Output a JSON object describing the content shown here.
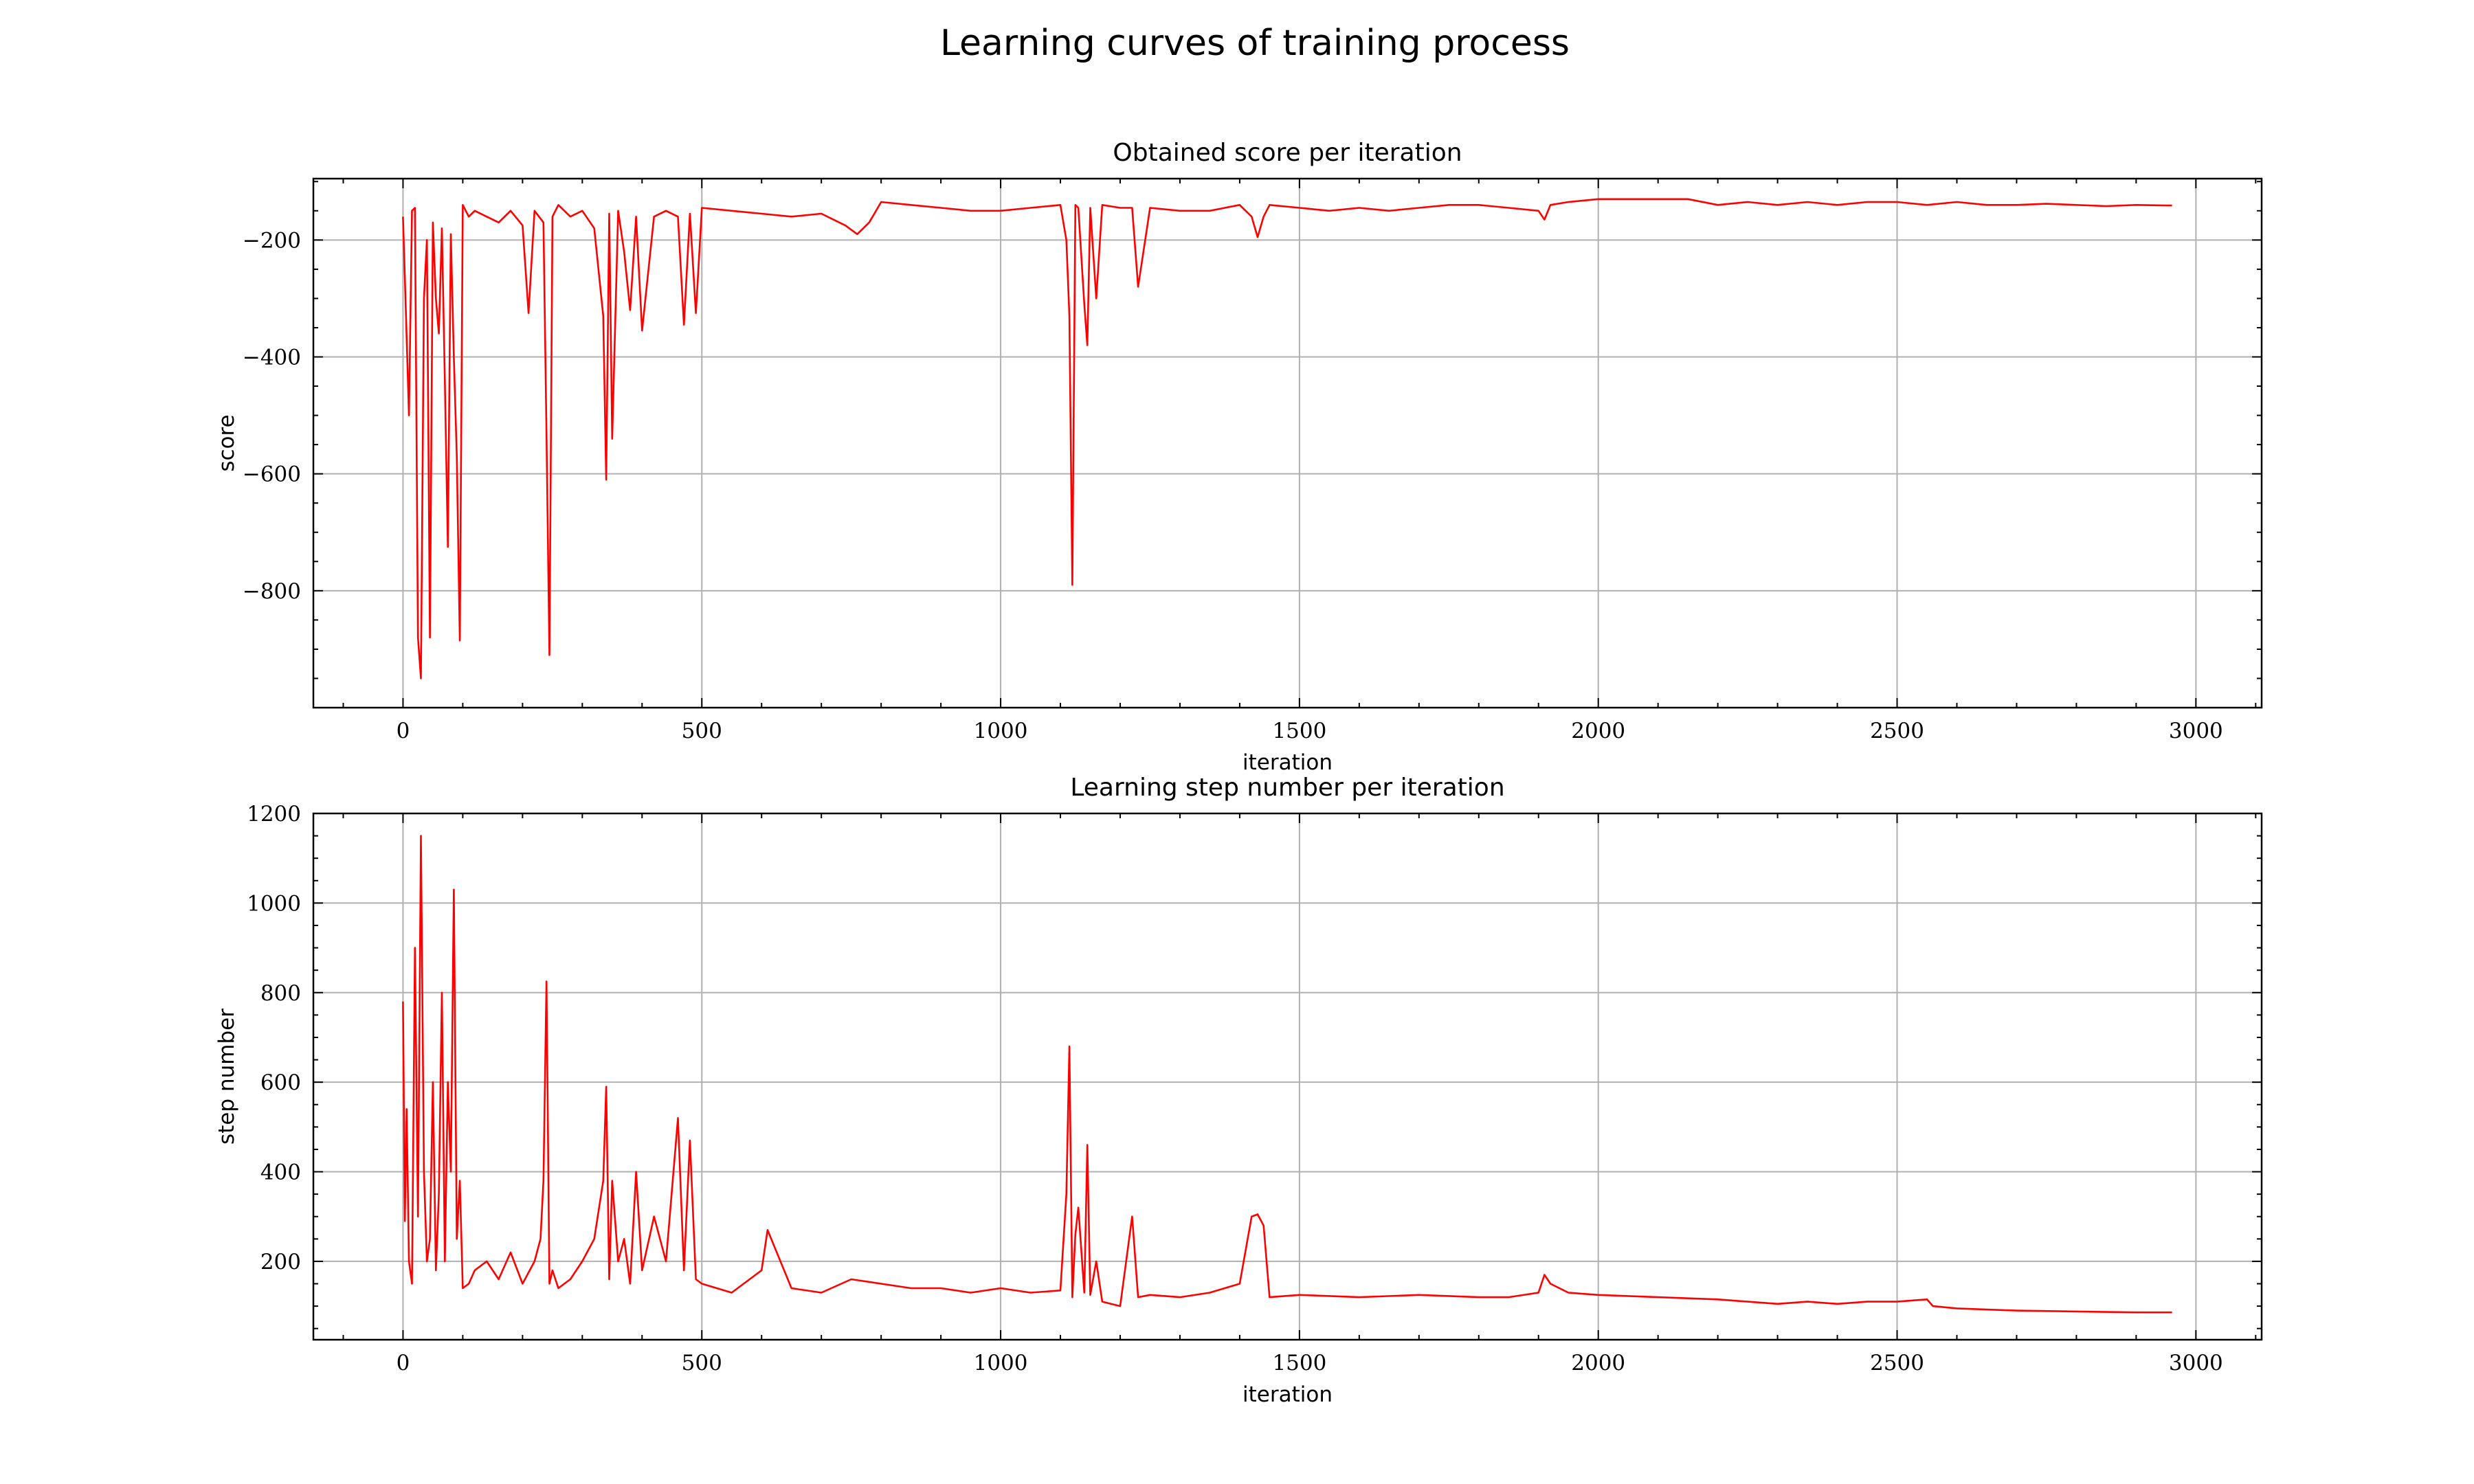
{
  "figure": {
    "title": "Learning curves of training process"
  },
  "chart_data": [
    {
      "type": "line",
      "title": "Obtained score per iteration",
      "xlabel": "iteration",
      "ylabel": "score",
      "xlim": [
        -150,
        3110
      ],
      "ylim": [
        -1000,
        -95
      ],
      "xticks": [
        0,
        500,
        1000,
        1500,
        2000,
        2500,
        3000
      ],
      "xtick_labels": [
        "0",
        "500",
        "1000",
        "1500",
        "2000",
        "2500",
        "3000"
      ],
      "yticks": [
        -800,
        -600,
        -400,
        -200
      ],
      "ytick_labels": [
        "−800",
        "−600",
        "−400",
        "−200"
      ],
      "grid": true,
      "color": "#ff0000",
      "series": [
        {
          "x": [
            0,
            5,
            10,
            15,
            20,
            25,
            30,
            35,
            40,
            45,
            50,
            55,
            60,
            65,
            70,
            75,
            80,
            85,
            90,
            95,
            100,
            110,
            120,
            140,
            160,
            180,
            200,
            210,
            220,
            235,
            240,
            245,
            250,
            260,
            280,
            300,
            320,
            335,
            340,
            345,
            350,
            360,
            370,
            380,
            390,
            400,
            420,
            440,
            460,
            470,
            480,
            490,
            500,
            550,
            600,
            650,
            700,
            740,
            760,
            780,
            800,
            850,
            900,
            950,
            1000,
            1050,
            1100,
            1110,
            1115,
            1120,
            1125,
            1130,
            1140,
            1145,
            1150,
            1160,
            1170,
            1200,
            1220,
            1230,
            1250,
            1300,
            1350,
            1400,
            1420,
            1430,
            1440,
            1450,
            1500,
            1550,
            1600,
            1650,
            1700,
            1750,
            1800,
            1850,
            1900,
            1910,
            1920,
            1950,
            2000,
            2050,
            2100,
            2150,
            2200,
            2250,
            2300,
            2350,
            2400,
            2450,
            2500,
            2550,
            2600,
            2650,
            2700,
            2750,
            2800,
            2850,
            2900,
            2950,
            2960
          ],
          "y": [
            -160,
            -330,
            -500,
            -150,
            -145,
            -880,
            -950,
            -300,
            -200,
            -880,
            -170,
            -300,
            -360,
            -180,
            -440,
            -725,
            -190,
            -400,
            -570,
            -885,
            -140,
            -160,
            -150,
            -160,
            -170,
            -150,
            -175,
            -325,
            -150,
            -170,
            -530,
            -910,
            -160,
            -140,
            -160,
            -150,
            -180,
            -330,
            -610,
            -155,
            -540,
            -150,
            -220,
            -320,
            -160,
            -355,
            -160,
            -150,
            -160,
            -345,
            -155,
            -325,
            -145,
            -150,
            -155,
            -160,
            -155,
            -175,
            -190,
            -170,
            -135,
            -140,
            -145,
            -150,
            -150,
            -145,
            -140,
            -200,
            -330,
            -790,
            -140,
            -145,
            -310,
            -380,
            -145,
            -300,
            -140,
            -145,
            -145,
            -280,
            -145,
            -150,
            -150,
            -140,
            -160,
            -195,
            -160,
            -140,
            -145,
            -150,
            -145,
            -150,
            -145,
            -140,
            -140,
            -145,
            -150,
            -165,
            -140,
            -135,
            -130,
            -130,
            -130,
            -130,
            -140,
            -135,
            -140,
            -135,
            -140,
            -135,
            -135,
            -140,
            -135,
            -140,
            -140,
            -138,
            -140,
            -142,
            -140,
            -141,
            -141
          ]
        }
      ]
    },
    {
      "type": "line",
      "title": "Learning step number per iteration",
      "xlabel": "iteration",
      "ylabel": "step number",
      "xlim": [
        -150,
        3110
      ],
      "ylim": [
        25,
        1200
      ],
      "xticks": [
        0,
        500,
        1000,
        1500,
        2000,
        2500,
        3000
      ],
      "xtick_labels": [
        "0",
        "500",
        "1000",
        "1500",
        "2000",
        "2500",
        "3000"
      ],
      "yticks": [
        200,
        400,
        600,
        800,
        1000,
        1200
      ],
      "ytick_labels": [
        "200",
        "400",
        "600",
        "800",
        "1000",
        "1200"
      ],
      "grid": true,
      "color": "#ff0000",
      "series": [
        {
          "x": [
            0,
            3,
            6,
            10,
            15,
            20,
            25,
            30,
            35,
            40,
            45,
            50,
            55,
            60,
            65,
            70,
            75,
            80,
            85,
            90,
            95,
            100,
            110,
            120,
            140,
            160,
            180,
            200,
            220,
            230,
            235,
            240,
            245,
            250,
            260,
            280,
            300,
            320,
            335,
            340,
            345,
            350,
            360,
            370,
            380,
            390,
            400,
            420,
            440,
            460,
            470,
            480,
            490,
            500,
            550,
            600,
            610,
            650,
            700,
            750,
            800,
            850,
            900,
            950,
            1000,
            1050,
            1100,
            1110,
            1115,
            1120,
            1125,
            1130,
            1140,
            1145,
            1150,
            1160,
            1170,
            1200,
            1220,
            1230,
            1250,
            1300,
            1350,
            1400,
            1420,
            1430,
            1440,
            1450,
            1500,
            1600,
            1700,
            1800,
            1850,
            1900,
            1910,
            1920,
            1950,
            2000,
            2100,
            2200,
            2250,
            2300,
            2350,
            2400,
            2450,
            2500,
            2550,
            2560,
            2600,
            2700,
            2800,
            2900,
            2960
          ],
          "y": [
            780,
            290,
            540,
            200,
            150,
            900,
            300,
            1150,
            400,
            200,
            250,
            600,
            180,
            350,
            800,
            200,
            600,
            400,
            1030,
            250,
            380,
            140,
            150,
            180,
            200,
            160,
            220,
            150,
            200,
            250,
            380,
            825,
            150,
            180,
            140,
            160,
            200,
            250,
            380,
            590,
            160,
            380,
            200,
            250,
            150,
            400,
            180,
            300,
            200,
            520,
            180,
            470,
            160,
            150,
            130,
            180,
            270,
            140,
            130,
            160,
            150,
            140,
            140,
            130,
            140,
            130,
            135,
            350,
            680,
            120,
            260,
            320,
            130,
            460,
            125,
            200,
            110,
            100,
            300,
            120,
            125,
            120,
            130,
            150,
            300,
            305,
            280,
            120,
            125,
            120,
            125,
            120,
            120,
            130,
            170,
            150,
            130,
            125,
            120,
            115,
            110,
            105,
            110,
            105,
            110,
            110,
            115,
            100,
            95,
            90,
            88,
            86,
            86
          ]
        }
      ]
    }
  ]
}
